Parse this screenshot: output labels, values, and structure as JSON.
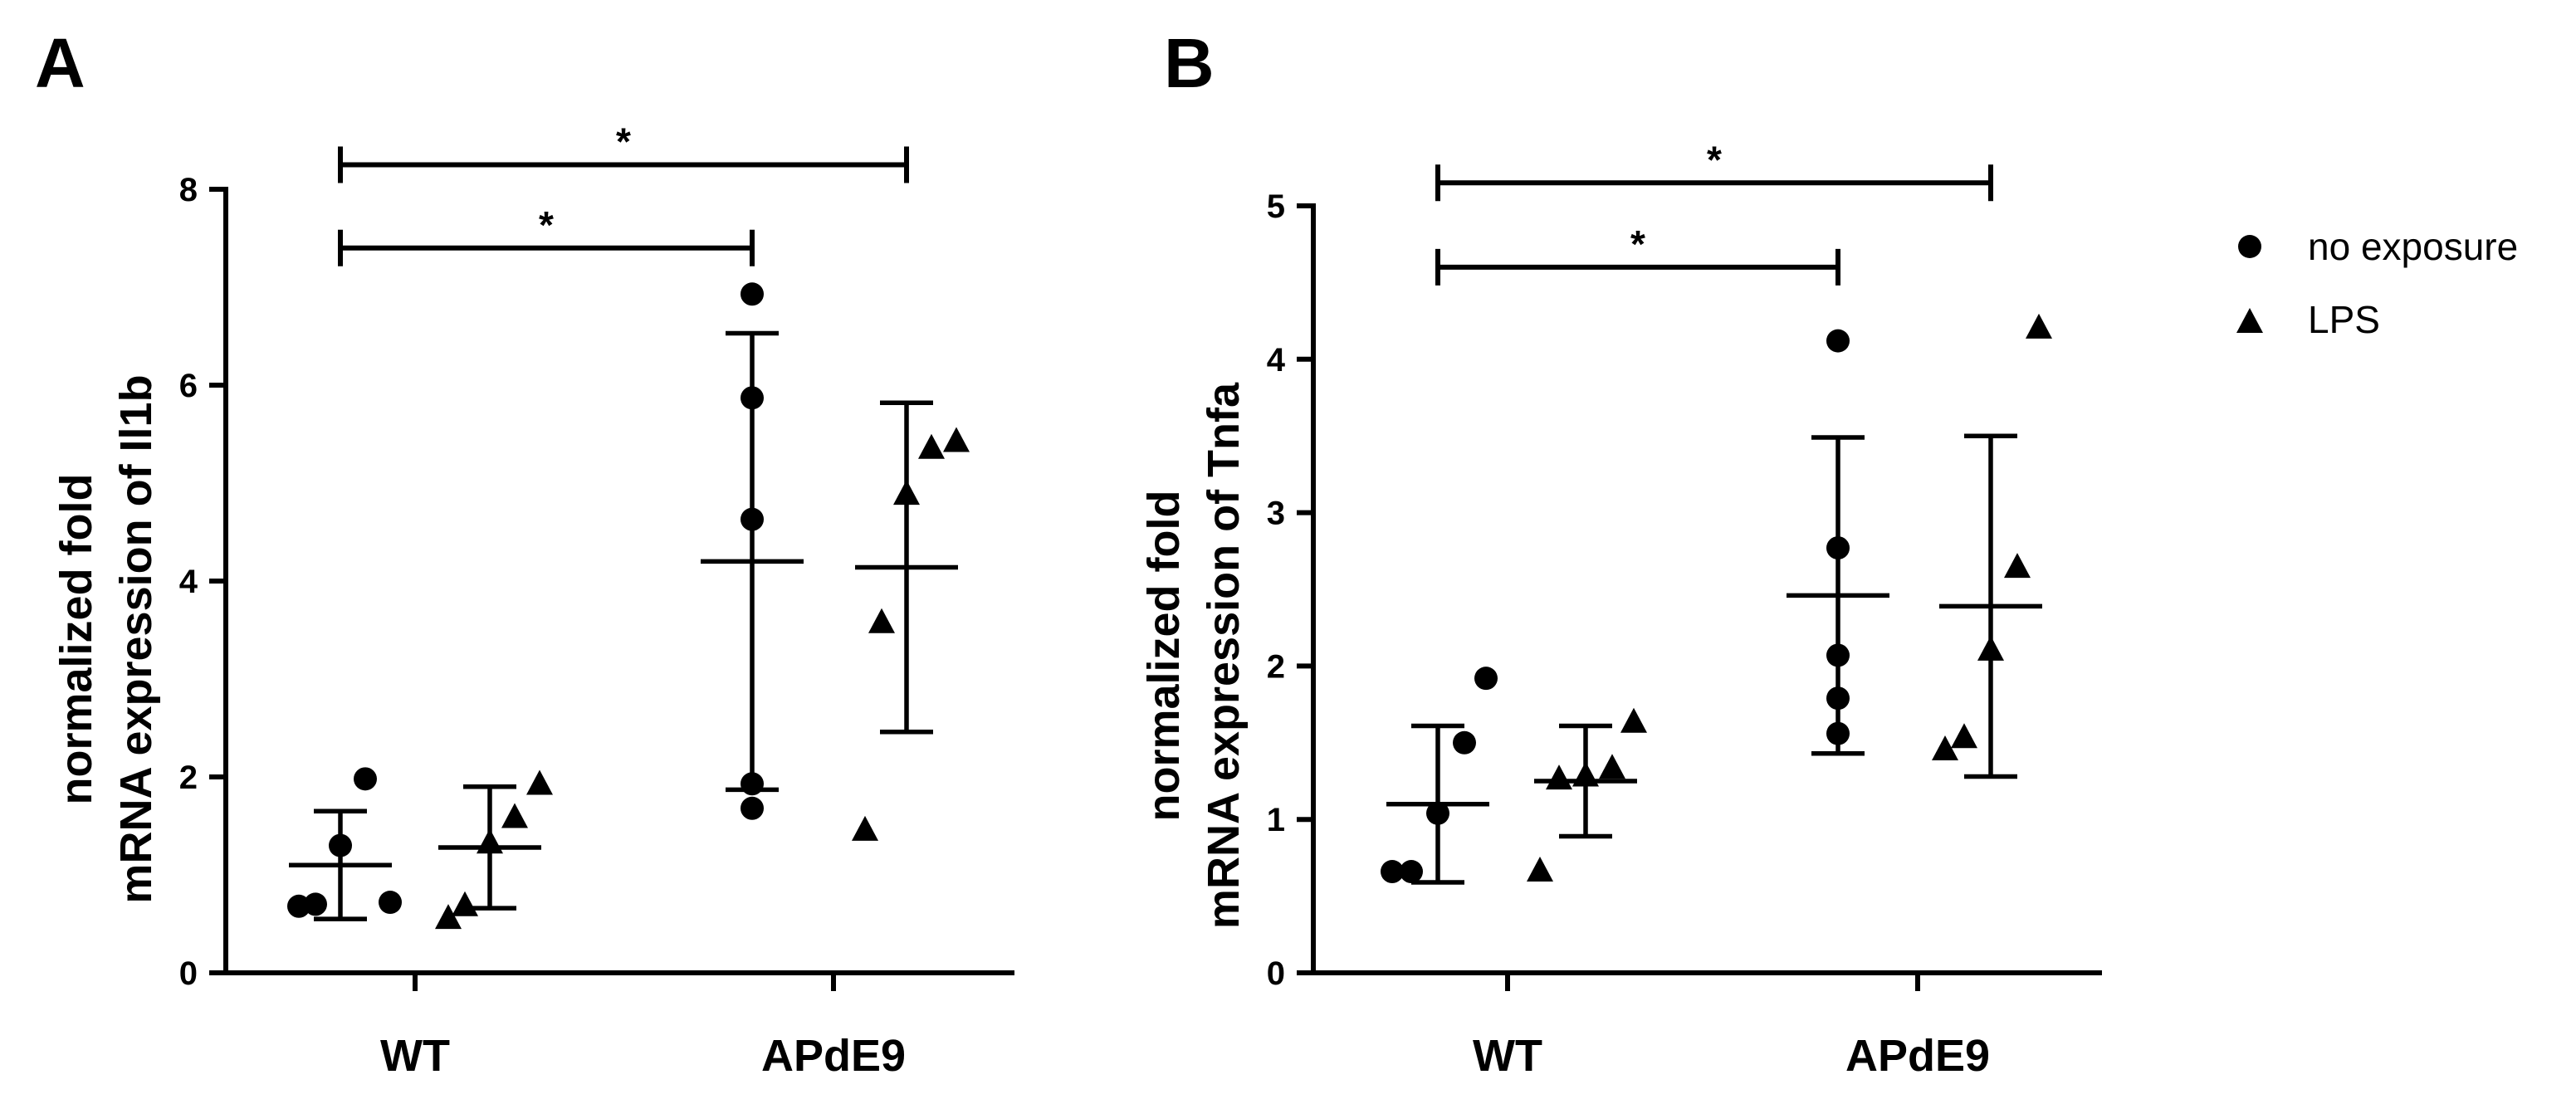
{
  "colors": {
    "ink": "#000000",
    "background": "#ffffff"
  },
  "legend": {
    "items": [
      {
        "label": "no exposure",
        "marker": "circle"
      },
      {
        "label": "LPS",
        "marker": "triangle"
      }
    ]
  },
  "chart_data": [
    {
      "panel": "A",
      "type": "scatter",
      "ylabel_lines": [
        "normalized fold",
        "mRNA expression of Il1b"
      ],
      "ylim": [
        0,
        8
      ],
      "yticks": [
        0,
        2,
        4,
        6,
        8
      ],
      "categories": [
        "WT",
        "APdE9"
      ],
      "series": [
        {
          "name": "no exposure",
          "marker": "circle",
          "groups": [
            {
              "category": "WT",
              "mean": 1.1,
              "sd": 0.55,
              "points": [
                0.68,
                0.7,
                1.3,
                1.98,
                0.72
              ]
            },
            {
              "category": "APdE9",
              "mean": 4.2,
              "sd": 2.33,
              "points": [
                1.68,
                1.93,
                4.63,
                5.87,
                6.93
              ]
            }
          ]
        },
        {
          "name": "LPS",
          "marker": "triangle",
          "groups": [
            {
              "category": "WT",
              "mean": 1.28,
              "sd": 0.62,
              "points": [
                0.55,
                0.68,
                1.32,
                1.58,
                1.92
              ]
            },
            {
              "category": "APdE9",
              "mean": 4.14,
              "sd": 1.68,
              "points": [
                1.45,
                3.57,
                4.88,
                5.35,
                5.42
              ]
            }
          ]
        }
      ],
      "comparisons": [
        {
          "from": "WT no exposure",
          "to": "APdE9 no exposure",
          "y": 7.4,
          "label": "*"
        },
        {
          "from": "WT no exposure",
          "to": "APdE9 LPS",
          "y": 8.25,
          "label": "*"
        }
      ]
    },
    {
      "panel": "B",
      "type": "scatter",
      "ylabel_lines": [
        "normalized fold",
        "mRNA expression of Tnfa"
      ],
      "ylim": [
        0,
        5
      ],
      "yticks": [
        0,
        1,
        2,
        3,
        4,
        5
      ],
      "categories": [
        "WT",
        "APdE9"
      ],
      "series": [
        {
          "name": "no exposure",
          "marker": "circle",
          "groups": [
            {
              "category": "WT",
              "mean": 1.1,
              "sd": 0.51,
              "points": [
                0.66,
                0.66,
                1.04,
                1.5,
                1.92
              ]
            },
            {
              "category": "APdE9",
              "mean": 2.46,
              "sd": 1.03,
              "points": [
                1.56,
                1.79,
                2.07,
                2.77,
                4.12
              ]
            }
          ]
        },
        {
          "name": "LPS",
          "marker": "triangle",
          "groups": [
            {
              "category": "WT",
              "mean": 1.25,
              "sd": 0.36,
              "points": [
                0.66,
                1.26,
                1.28,
                1.33,
                1.63
              ]
            },
            {
              "category": "APdE9",
              "mean": 2.39,
              "sd": 1.11,
              "points": [
                1.45,
                1.53,
                2.1,
                2.64,
                4.2
              ]
            }
          ]
        }
      ],
      "comparisons": [
        {
          "from": "WT no exposure",
          "to": "APdE9 no exposure",
          "y": 4.6,
          "label": "*"
        },
        {
          "from": "WT no exposure",
          "to": "APdE9 LPS",
          "y": 5.15,
          "label": "*"
        }
      ]
    }
  ]
}
